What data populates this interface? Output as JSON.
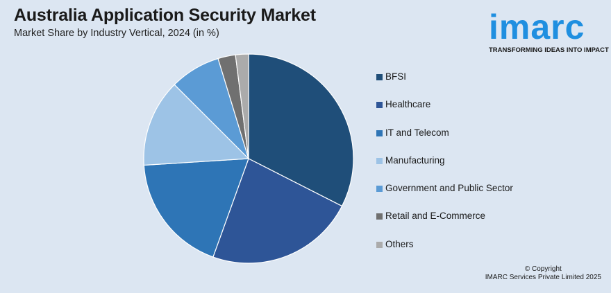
{
  "title": "Australia Application Security Market",
  "subtitle": "Market Share by Industry Vertical, 2024 (in %)",
  "logo": {
    "word": "imarc",
    "tagline": "TRANSFORMING IDEAS INTO IMPACT"
  },
  "copyright": {
    "line1": "© Copyright",
    "line2": "IMARC Services Private Limited 2025"
  },
  "chart_data": {
    "type": "pie",
    "title": "Australia Application Security Market",
    "subtitle": "Market Share by Industry Vertical, 2024 (in %)",
    "legend_position": "right",
    "categories": [
      "BFSI",
      "Healthcare",
      "IT and Telecom",
      "Manufacturing",
      "Government and Public Sector",
      "Retail and E-Commerce",
      "Others"
    ],
    "values": [
      32.5,
      23.0,
      18.5,
      13.5,
      7.8,
      2.7,
      2.0
    ],
    "colors": [
      "#1f4e79",
      "#2e5597",
      "#2e75b6",
      "#9dc3e6",
      "#5b9bd5",
      "#707070",
      "#ababab"
    ]
  }
}
